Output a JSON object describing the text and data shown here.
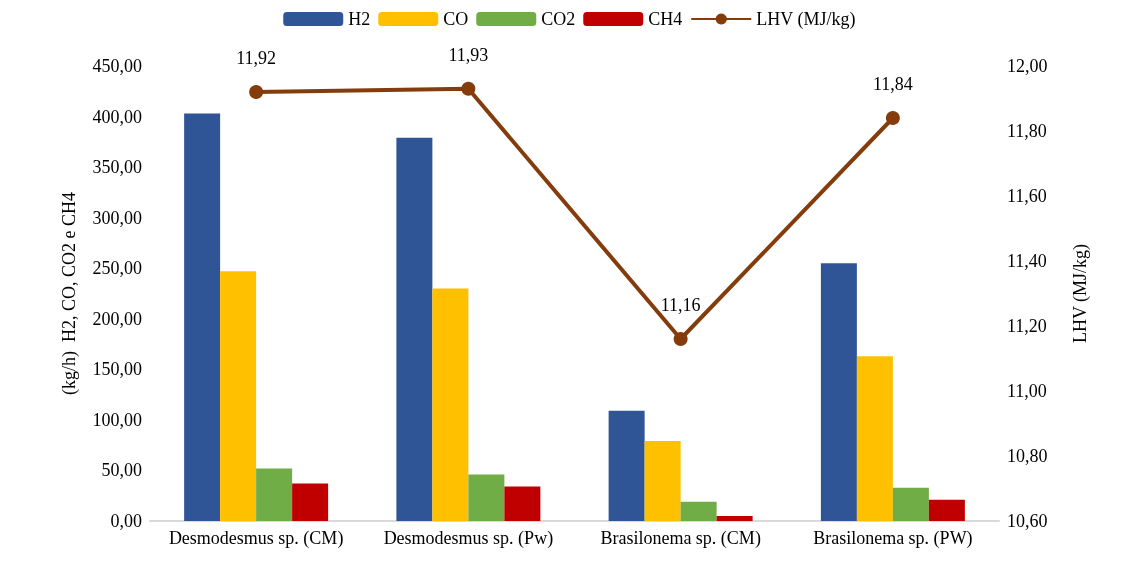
{
  "chart_data": {
    "type": "bar",
    "ylabel": "(kg/h)  H2, CO, CO2 e CH4",
    "y2label": "LHV (MJ/kg)",
    "categories": [
      "Desmodesmus sp. (CM)",
      "Desmodesmus sp. (Pw)",
      "Brasilonema sp. (CM)",
      "Brasilonema sp. (PW)"
    ],
    "series": [
      {
        "name": "H2",
        "color": "#2f5597",
        "values": [
          403,
          379,
          109,
          255
        ]
      },
      {
        "name": "CO",
        "color": "#ffc000",
        "values": [
          247,
          230,
          79,
          163
        ]
      },
      {
        "name": "CO2",
        "color": "#70ad47",
        "values": [
          52,
          46,
          19,
          33
        ]
      },
      {
        "name": "CH4",
        "color": "#c00000",
        "values": [
          37,
          34,
          5,
          21
        ]
      },
      {
        "name": "LHV (MJ/kg)",
        "type": "line",
        "axis": "y2",
        "color": "#843c0c",
        "marker": "circle",
        "values": [
          11.92,
          11.93,
          11.16,
          11.84
        ],
        "value_labels": [
          "11,92",
          "11,93",
          "11,16",
          "11,84"
        ]
      }
    ],
    "ylim": [
      0,
      450
    ],
    "yticks": [
      {
        "value": 0,
        "label": "0,00"
      },
      {
        "value": 50,
        "label": "50,00"
      },
      {
        "value": 100,
        "label": "100,00"
      },
      {
        "value": 150,
        "label": "150,00"
      },
      {
        "value": 200,
        "label": "200,00"
      },
      {
        "value": 250,
        "label": "250,00"
      },
      {
        "value": 300,
        "label": "300,00"
      },
      {
        "value": 350,
        "label": "350,00"
      },
      {
        "value": 400,
        "label": "400,00"
      },
      {
        "value": 450,
        "label": "450,00"
      }
    ],
    "y2lim": [
      10.6,
      12
    ],
    "y2ticks": [
      {
        "value": 10.6,
        "label": "10,60"
      },
      {
        "value": 10.8,
        "label": "10,80"
      },
      {
        "value": 11,
        "label": "11,00"
      },
      {
        "value": 11.2,
        "label": "11,20"
      },
      {
        "value": 11.4,
        "label": "11,40"
      },
      {
        "value": 11.6,
        "label": "11,60"
      },
      {
        "value": 11.8,
        "label": "11,80"
      },
      {
        "value": 12,
        "label": "12,00"
      }
    ],
    "grid": false,
    "legend": "top"
  }
}
